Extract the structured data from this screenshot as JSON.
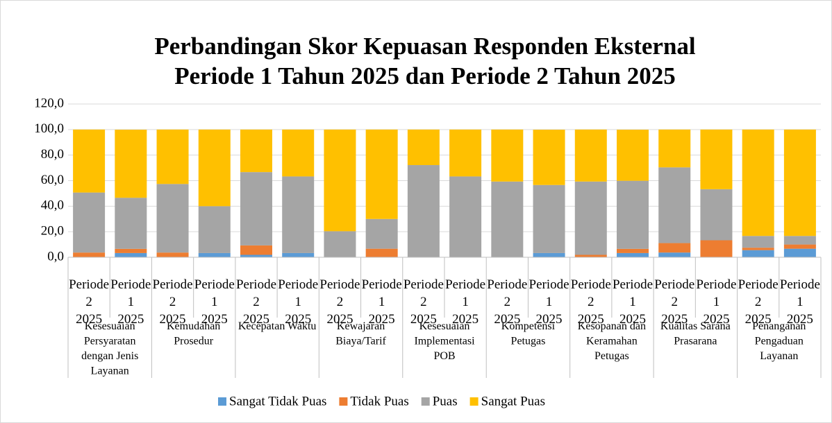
{
  "chart_data": {
    "type": "stacked_bar",
    "title": [
      "Perbandingan Skor Kepuasan Responden Eksternal",
      "Periode 1 Tahun 2025 dan Periode 2 Tahun 2025"
    ],
    "groups": [
      "Kesesuaian Persyaratan dengan Jenis Layanan",
      "Kemudahan Prosedur",
      "Kecepatan Waktu",
      "Kewajaran Biaya/Tarif",
      "Kesesuaian Implementasi POB",
      "Kompetensi Petugas",
      "Kesopanan dan Keramahan Petugas",
      "Kualitas Sarana Prasarana",
      "Penanganan Pengaduan Layanan"
    ],
    "categories": [
      "Periode 2 2025",
      "Periode 1 2025",
      "Periode 2 2025",
      "Periode 1 2025",
      "Periode 2 2025",
      "Periode 1 2025",
      "Periode 2 2025",
      "Periode 1 2025",
      "Periode 2 2025",
      "Periode 1 2025",
      "Periode 2 2025",
      "Periode 1 2025",
      "Periode 2 2025",
      "Periode 1 2025",
      "Periode 2 2025",
      "Periode 1 2025",
      "Periode 2 2025",
      "Periode 1 2025"
    ],
    "series": [
      {
        "name": "Sangat Tidak Puas",
        "color": "#5b9bd5",
        "values": [
          0,
          3.3,
          0,
          3.3,
          1.9,
          3.3,
          0,
          0,
          0,
          0,
          0,
          3.3,
          0,
          3.3,
          3.7,
          0,
          5.6,
          6.7
        ]
      },
      {
        "name": "Tidak Puas",
        "color": "#ed7d31",
        "values": [
          3.7,
          3.3,
          3.7,
          0,
          7.4,
          0,
          0,
          6.7,
          0,
          0,
          0,
          0,
          1.9,
          3.3,
          7.4,
          13.3,
          1.9,
          3.3
        ]
      },
      {
        "name": "Puas",
        "color": "#a5a5a5",
        "values": [
          47,
          40,
          53.7,
          36.7,
          57.4,
          60,
          20.4,
          23.3,
          72.2,
          63.3,
          59.3,
          53.3,
          57.4,
          53.3,
          59.3,
          40,
          9.2,
          6.7
        ]
      },
      {
        "name": "Sangat Puas",
        "color": "#ffc000",
        "values": [
          49.3,
          53.3,
          42.6,
          60,
          33.3,
          36.7,
          79.6,
          70,
          27.8,
          36.7,
          40.7,
          43.3,
          40.7,
          40,
          29.6,
          46.7,
          83.3,
          83.3
        ]
      }
    ],
    "ylim": [
      0,
      120
    ],
    "yticks": [
      {
        "value": 0,
        "label": "0,0"
      },
      {
        "value": 20,
        "label": "20,0"
      },
      {
        "value": 40,
        "label": "40,0"
      },
      {
        "value": 60,
        "label": "60,0"
      },
      {
        "value": 80,
        "label": "80,0"
      },
      {
        "value": 100,
        "label": "100,0"
      },
      {
        "value": 120,
        "label": "120,0"
      }
    ],
    "grid": true,
    "legend": "bottom"
  }
}
